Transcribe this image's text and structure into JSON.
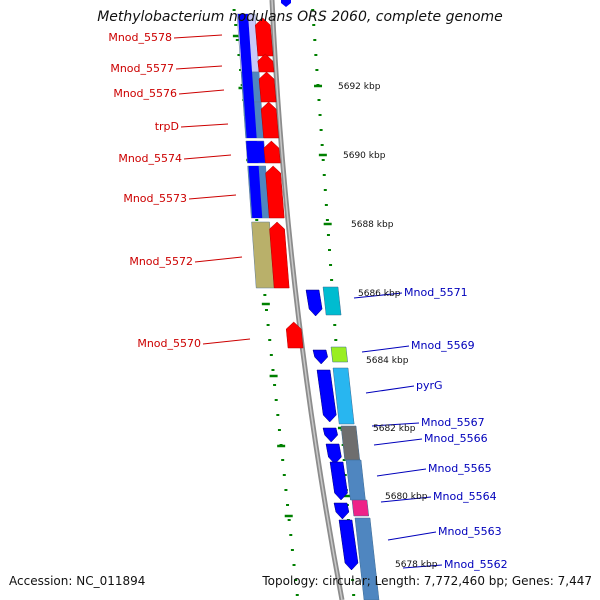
{
  "header": {
    "title": "Methylobacterium nodulans ORS 2060, complete genome"
  },
  "footer": {
    "accession": "Accession: NC_011894",
    "summary": "Topology: circular; Length: 7,772,460 bp; Genes: 7,447"
  },
  "scale_labels": [
    "5692 kbp",
    "5690 kbp",
    "5688 kbp",
    "5686 kbp",
    "5684 kbp",
    "5682 kbp",
    "5680 kbp",
    "5678 kbp"
  ],
  "genes_left": [
    "Mnod_5578",
    "Mnod_5577",
    "Mnod_5576",
    "trpD",
    "Mnod_5574",
    "Mnod_5573",
    "Mnod_5572",
    "Mnod_5570"
  ],
  "genes_right": [
    "Mnod_5571",
    "Mnod_5569",
    "pyrG",
    "Mnod_5567",
    "Mnod_5566",
    "Mnod_5565",
    "Mnod_5564",
    "Mnod_5563",
    "Mnod_5562"
  ],
  "colors": {
    "left_label": "#cc0000",
    "right_label": "#0000bb",
    "backbone": "#8c8c8c",
    "tick": "#008000",
    "gene_blue": "#0000ff",
    "gene_red": "#ff0000",
    "gene_steel": "#4f86c0",
    "gene_khaki": "#b9b06a",
    "gene_cyan": "#00bcd0",
    "gene_sky": "#28b6f0",
    "gene_lime": "#99ee22",
    "gene_gray": "#6e6e6e",
    "gene_pink": "#ee2288"
  }
}
